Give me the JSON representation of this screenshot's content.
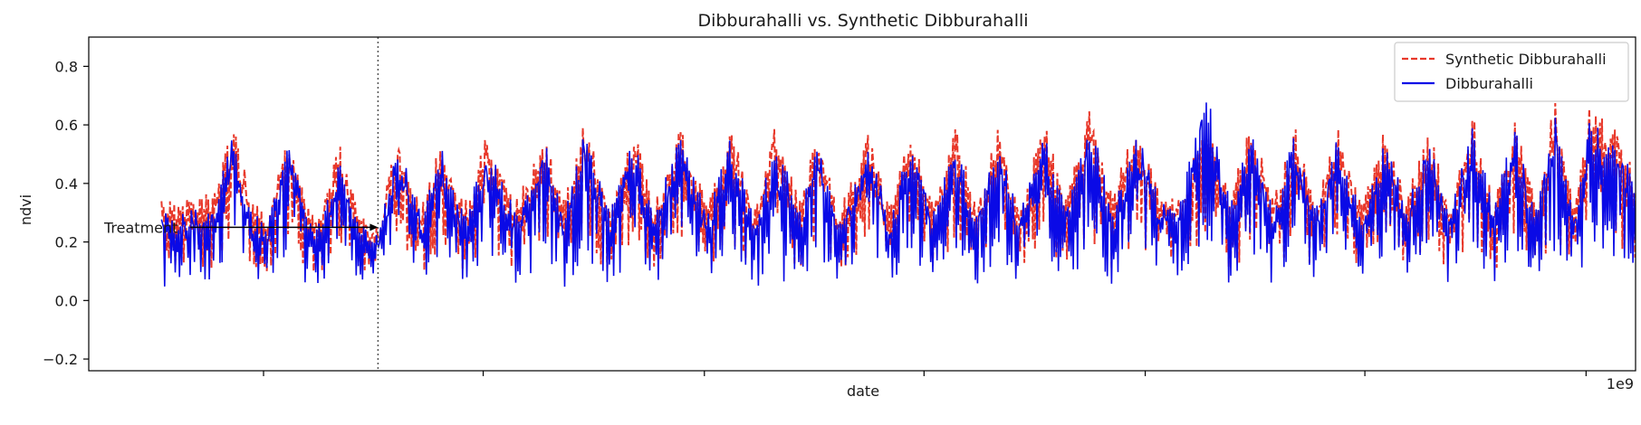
{
  "chart_data": {
    "type": "line",
    "title": "Dibburahalli vs. Synthetic Dibburahalli",
    "xlabel": "date",
    "ylabel": "ndvi",
    "x_offset_label": "1e9",
    "ylim": [
      -0.24,
      0.9
    ],
    "yticks": [
      -0.2,
      0.0,
      0.2,
      0.4,
      0.6,
      0.8
    ],
    "ytick_labels": [
      "−0.2",
      "0.0",
      "0.2",
      "0.4",
      "0.6",
      "0.8"
    ],
    "xlim": [
      0,
      1000
    ],
    "xticks": [
      113,
      255,
      398,
      540,
      683,
      825,
      968
    ],
    "treatment_x": 187,
    "annotation": {
      "text": "Treatment",
      "x": 187,
      "y": 0.25
    },
    "legend_position": "upper right",
    "series": [
      {
        "name": "Synthetic Dibburahalli",
        "style": "dashed",
        "color": "#e8382a",
        "x": [
          47,
          60,
          80,
          94,
          105,
          116,
          130,
          140,
          150,
          162,
          175,
          187,
          200,
          215,
          228,
          243,
          258,
          276,
          295,
          308,
          320,
          337,
          352,
          365,
          382,
          400,
          415,
          430,
          444,
          460,
          472,
          485,
          504,
          518,
          532,
          546,
          560,
          574,
          588,
          602,
          617,
          632,
          647,
          662,
          677,
          693,
          706,
          722,
          738,
          752,
          766,
          780,
          793,
          807,
          823,
          838,
          852,
          866,
          880,
          895,
          908,
          922,
          935,
          948,
          960,
          970,
          990,
          1002,
          1010
        ],
        "upper": [
          0.36,
          0.34,
          0.38,
          0.62,
          0.34,
          0.31,
          0.6,
          0.33,
          0.3,
          0.54,
          0.3,
          0.25,
          0.58,
          0.32,
          0.55,
          0.34,
          0.58,
          0.34,
          0.57,
          0.35,
          0.62,
          0.33,
          0.61,
          0.32,
          0.6,
          0.33,
          0.6,
          0.32,
          0.61,
          0.34,
          0.6,
          0.3,
          0.58,
          0.32,
          0.6,
          0.34,
          0.6,
          0.33,
          0.59,
          0.32,
          0.63,
          0.35,
          0.68,
          0.36,
          0.62,
          0.35,
          0.38,
          0.63,
          0.36,
          0.62,
          0.35,
          0.6,
          0.34,
          0.6,
          0.33,
          0.6,
          0.35,
          0.6,
          0.33,
          0.64,
          0.34,
          0.63,
          0.34,
          0.69,
          0.34,
          0.66,
          0.6,
          0.38,
          0.5
        ],
        "lower": [
          0.02,
          0.05,
          0.03,
          0.1,
          0.04,
          0.03,
          0.1,
          0.05,
          0.04,
          0.1,
          0.05,
          0.05,
          0.1,
          0.03,
          0.08,
          0.0,
          0.1,
          0.02,
          0.08,
          0.03,
          0.1,
          0.01,
          0.1,
          0.03,
          0.1,
          0.02,
          0.1,
          0.03,
          0.1,
          0.02,
          0.1,
          0.03,
          0.1,
          0.02,
          0.1,
          0.03,
          0.1,
          0.01,
          0.1,
          0.04,
          0.1,
          0.02,
          0.1,
          0.0,
          0.1,
          0.03,
          0.05,
          0.1,
          0.0,
          0.1,
          0.02,
          0.1,
          0.02,
          0.1,
          0.03,
          0.1,
          0.01,
          0.1,
          0.03,
          0.1,
          0.02,
          0.1,
          0.03,
          0.1,
          0.02,
          0.1,
          0.05,
          0.06,
          0.06
        ]
      },
      {
        "name": "Dibburahalli",
        "style": "solid",
        "color": "#0a0ae6",
        "x": [
          47,
          60,
          80,
          94,
          105,
          116,
          130,
          140,
          150,
          162,
          175,
          187,
          200,
          215,
          228,
          243,
          258,
          276,
          295,
          308,
          320,
          337,
          352,
          365,
          382,
          400,
          415,
          430,
          444,
          460,
          472,
          485,
          504,
          518,
          532,
          546,
          560,
          574,
          588,
          602,
          617,
          632,
          647,
          662,
          677,
          693,
          706,
          722,
          738,
          752,
          766,
          780,
          793,
          807,
          823,
          838,
          852,
          866,
          880,
          895,
          908,
          922,
          935,
          948,
          960,
          970,
          990,
          1002,
          1010
        ],
        "upper": [
          0.3,
          0.3,
          0.33,
          0.58,
          0.3,
          0.27,
          0.57,
          0.3,
          0.26,
          0.5,
          0.27,
          0.22,
          0.55,
          0.29,
          0.52,
          0.3,
          0.54,
          0.3,
          0.54,
          0.3,
          0.58,
          0.3,
          0.57,
          0.3,
          0.57,
          0.3,
          0.57,
          0.3,
          0.57,
          0.3,
          0.56,
          0.27,
          0.55,
          0.28,
          0.57,
          0.3,
          0.56,
          0.3,
          0.55,
          0.29,
          0.6,
          0.32,
          0.65,
          0.3,
          0.6,
          0.33,
          0.35,
          0.75,
          0.33,
          0.6,
          0.32,
          0.58,
          0.31,
          0.57,
          0.3,
          0.57,
          0.32,
          0.57,
          0.3,
          0.62,
          0.32,
          0.6,
          0.3,
          0.66,
          0.3,
          0.63,
          0.56,
          0.35,
          0.5
        ],
        "lower": [
          -0.03,
          0.0,
          -0.01,
          0.05,
          0.0,
          -0.01,
          0.06,
          0.0,
          0.0,
          0.05,
          0.02,
          0.03,
          0.04,
          -0.02,
          0.03,
          -0.02,
          0.05,
          -0.01,
          0.03,
          -0.05,
          0.06,
          -0.02,
          0.04,
          -0.02,
          0.05,
          -0.02,
          0.04,
          0.0,
          -0.2,
          0.0,
          0.05,
          -0.02,
          0.04,
          -0.02,
          0.05,
          -0.01,
          0.04,
          -0.02,
          0.05,
          -0.01,
          0.05,
          -0.02,
          0.05,
          -0.02,
          0.04,
          0.0,
          0.02,
          0.05,
          -0.02,
          0.05,
          -0.02,
          0.05,
          -0.02,
          0.05,
          -0.01,
          0.05,
          -0.02,
          0.05,
          -0.01,
          0.05,
          -0.02,
          0.05,
          -0.01,
          0.05,
          -0.01,
          0.05,
          -0.01,
          0.03,
          0.03
        ]
      }
    ]
  }
}
